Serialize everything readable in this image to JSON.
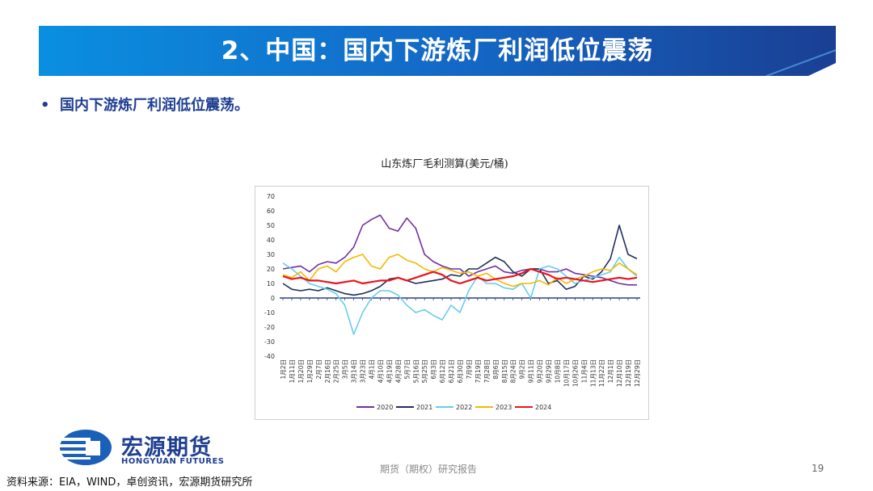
{
  "header": {
    "title": "2、中国：国内下游炼厂利润低位震荡"
  },
  "bullet": {
    "marker": "•",
    "text": "国内下游炼厂利润低位震荡。"
  },
  "logo": {
    "cn": "宏源期货",
    "en": "HONGYUAN FUTURES"
  },
  "source": "资料来源：EIA，WIND，卓创资讯，宏源期货研究所",
  "footer": "期货（期权）研究报告",
  "page_number": "19",
  "colors": {
    "brand": "#1f3f92",
    "banner_start": "#0a7fd1",
    "banner_end": "#1a3f93"
  },
  "chart_data": {
    "type": "line",
    "title": "山东炼厂毛利测算(美元/桶)",
    "ylim": [
      -40,
      70
    ],
    "yticks": [
      "70",
      "60",
      "50",
      "40",
      "30",
      "20",
      "10",
      "0",
      "-10",
      "-20",
      "-30",
      "-40"
    ],
    "xticks": [
      "1月2日",
      "1月11日",
      "1月20日",
      "1月29日",
      "2月7日",
      "2月16日",
      "2月25日",
      "3月5日",
      "3月14日",
      "3月23日",
      "4月1日",
      "4月10日",
      "4月19日",
      "4月28日",
      "5月7日",
      "5月16日",
      "5月25日",
      "6月3日",
      "6月12日",
      "6月21日",
      "6月30日",
      "7月9日",
      "7月19日",
      "7月28日",
      "8月6日",
      "8月15日",
      "8月24日",
      "9月2日",
      "9月11日",
      "9月20日",
      "9月29日",
      "10月8日",
      "10月17日",
      "10月26日",
      "11月4日",
      "11月13日",
      "11月22日",
      "12月1日",
      "12月10日",
      "12月19日",
      "12月29日"
    ],
    "legend_position": "bottom",
    "series": [
      {
        "name": "2020",
        "color": "#7030a0",
        "values": [
          20,
          21,
          22,
          18,
          23,
          25,
          24,
          28,
          35,
          50,
          54,
          57,
          48,
          46,
          55,
          48,
          30,
          25,
          22,
          20,
          20,
          15,
          18,
          20,
          22,
          18,
          17,
          19,
          20,
          20,
          18,
          18,
          20,
          17,
          16,
          15,
          14,
          12,
          10,
          9,
          9
        ]
      },
      {
        "name": "2021",
        "color": "#1f2f5f",
        "values": [
          10,
          6,
          5,
          6,
          5,
          7,
          5,
          3,
          2,
          3,
          5,
          8,
          13,
          14,
          12,
          10,
          11,
          12,
          13,
          16,
          15,
          20,
          20,
          24,
          28,
          25,
          18,
          15,
          20,
          20,
          10,
          12,
          6,
          8,
          15,
          13,
          18,
          27,
          50,
          30,
          27
        ]
      },
      {
        "name": "2022",
        "color": "#66ccee",
        "values": [
          24,
          20,
          15,
          10,
          8,
          6,
          3,
          -5,
          -25,
          -10,
          0,
          5,
          5,
          2,
          -5,
          -10,
          -8,
          -12,
          -15,
          -5,
          -10,
          5,
          15,
          10,
          10,
          7,
          6,
          10,
          0,
          20,
          22,
          20,
          15,
          10,
          12,
          14,
          16,
          18,
          28,
          20,
          15
        ]
      },
      {
        "name": "2023",
        "color": "#f5b800",
        "values": [
          16,
          14,
          18,
          12,
          20,
          22,
          18,
          25,
          28,
          30,
          22,
          20,
          28,
          30,
          26,
          24,
          20,
          18,
          21,
          19,
          17,
          18,
          15,
          17,
          13,
          10,
          8,
          10,
          10,
          12,
          9,
          14,
          10,
          13,
          15,
          18,
          20,
          19,
          24,
          20,
          16
        ]
      },
      {
        "name": "2024",
        "color": "#e8141e",
        "values": [
          15,
          13,
          14,
          12,
          12,
          11,
          10,
          11,
          12,
          10,
          11,
          12,
          12,
          14,
          12,
          14,
          16,
          18,
          16,
          12,
          10,
          12,
          14,
          12,
          13,
          14,
          15,
          17,
          20,
          18,
          16,
          13,
          14,
          13,
          12,
          11,
          12,
          13,
          14,
          13,
          14
        ]
      }
    ]
  }
}
